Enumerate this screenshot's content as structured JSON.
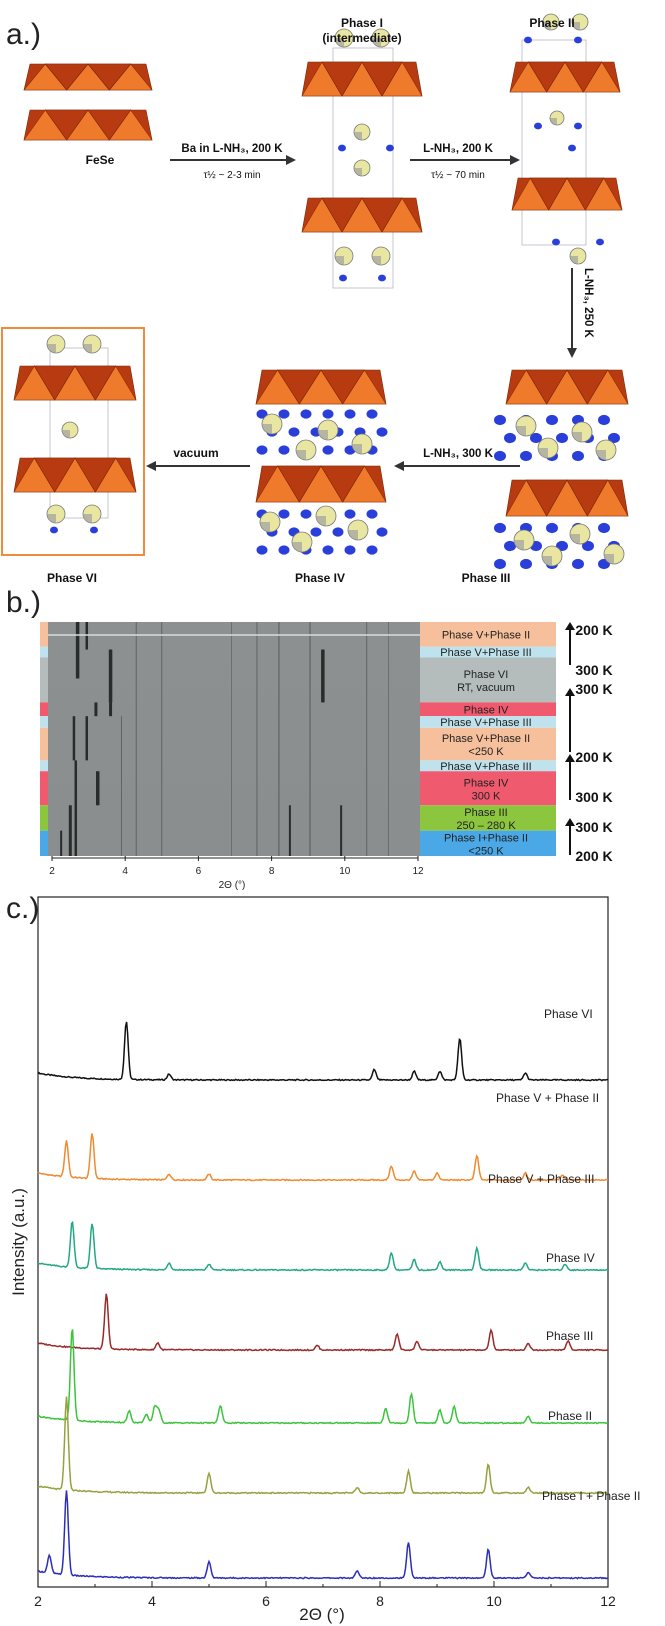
{
  "panel_a": {
    "label": "a.)",
    "fese": "FeSe",
    "phase_i": "Phase I",
    "phase_i_sub": "(intermediate)",
    "phase_ii": "Phase II",
    "phase_iii": "Phase III",
    "phase_iv": "Phase IV",
    "phase_vi": "Phase VI",
    "arrow1_top": "Ba in L-NH₃, 200 K",
    "arrow1_bottom": "τ½ ~ 2-3 min",
    "arrow2_top": "L-NH₃, 200 K",
    "arrow2_bottom": "τ½ ~ 70 min",
    "arrow3": "L-NH₃, 250 K",
    "arrow4": "L-NH₃, 300 K",
    "arrow5": "vacuum",
    "colors": {
      "octahedron_light": "#f07a2c",
      "octahedron_dark": "#b83a10",
      "ba_atom": "#e8e6a0",
      "n_atom": "#2a3fd9",
      "box": "#f08a3c"
    }
  },
  "panel_b": {
    "label": "b.)",
    "x_tick_labels": [
      "2",
      "4",
      "6",
      "8",
      "10",
      "12"
    ],
    "xlabel": "2Θ (°)",
    "bands": [
      {
        "line1": "Phase V+Phase II",
        "line2": "",
        "color": "#f6c09d"
      },
      {
        "line1": "Phase V+Phase III",
        "line2": "",
        "color": "#bfe3ee"
      },
      {
        "line1": "Phase VI",
        "line2": "RT, vacuum",
        "color": "#b4bcbc"
      },
      {
        "line1": "Phase IV",
        "line2": "",
        "color": "#f05a6e"
      },
      {
        "line1": "Phase V+Phase III",
        "line2": "",
        "color": "#bfe3ee"
      },
      {
        "line1": "Phase V+Phase II",
        "line2": "<250 K",
        "color": "#f6c09d"
      },
      {
        "line1": "Phase V+Phase III",
        "line2": "",
        "color": "#bfe3ee"
      },
      {
        "line1": "Phase IV",
        "line2": "300 K",
        "color": "#f05a6e"
      },
      {
        "line1": "Phase III",
        "line2": "250 – 280 K",
        "color": "#8cc63e"
      },
      {
        "line1": "Phase I+Phase II",
        "line2": "<250 K",
        "color": "#4aa8e6"
      }
    ],
    "temp_labels": [
      "200 K",
      "300 K",
      "300 K",
      "200 K",
      "300 K",
      "300 K",
      "200 K"
    ]
  },
  "chart_data": {
    "type": "line",
    "xlabel": "2Θ (°)",
    "ylabel": "Intensity (a.u.)",
    "xlim": [
      2,
      12
    ],
    "x_tick_labels": [
      "2",
      "4",
      "6",
      "8",
      "10",
      "12"
    ],
    "series": [
      {
        "name": "Phase VI",
        "color": "#111111",
        "offset": 6,
        "peaks": [
          [
            3.55,
            1.0
          ],
          [
            4.3,
            0.1
          ],
          [
            7.9,
            0.18
          ],
          [
            8.6,
            0.15
          ],
          [
            9.05,
            0.15
          ],
          [
            9.4,
            0.72
          ],
          [
            10.55,
            0.12
          ]
        ]
      },
      {
        "name": "Phase V + Phase II",
        "color": "#f08a30",
        "offset": 5,
        "peaks": [
          [
            2.5,
            0.62
          ],
          [
            2.95,
            0.78
          ],
          [
            4.3,
            0.1
          ],
          [
            5.0,
            0.1
          ],
          [
            8.2,
            0.24
          ],
          [
            8.6,
            0.15
          ],
          [
            9.0,
            0.12
          ],
          [
            9.7,
            0.42
          ],
          [
            10.55,
            0.12
          ],
          [
            11.2,
            0.08
          ]
        ]
      },
      {
        "name": "Phase V + Phase III",
        "color": "#22a884",
        "offset": 4,
        "peaks": [
          [
            2.6,
            0.8
          ],
          [
            2.95,
            0.78
          ],
          [
            4.3,
            0.12
          ],
          [
            5.0,
            0.1
          ],
          [
            8.2,
            0.3
          ],
          [
            8.6,
            0.18
          ],
          [
            9.05,
            0.14
          ],
          [
            9.7,
            0.38
          ],
          [
            10.55,
            0.12
          ],
          [
            11.25,
            0.1
          ]
        ]
      },
      {
        "name": "Phase IV",
        "color": "#9a2a2a",
        "offset": 3,
        "peaks": [
          [
            3.2,
            0.95
          ],
          [
            4.1,
            0.12
          ],
          [
            6.9,
            0.08
          ],
          [
            8.3,
            0.28
          ],
          [
            8.65,
            0.15
          ],
          [
            9.95,
            0.34
          ],
          [
            10.6,
            0.12
          ],
          [
            11.3,
            0.16
          ]
        ]
      },
      {
        "name": "Phase III",
        "color": "#3cc43c",
        "offset": 2,
        "peaks": [
          [
            2.6,
            1.6
          ],
          [
            3.6,
            0.2
          ],
          [
            3.9,
            0.15
          ],
          [
            4.05,
            0.28
          ],
          [
            4.12,
            0.22
          ],
          [
            5.2,
            0.3
          ],
          [
            8.1,
            0.26
          ],
          [
            8.55,
            0.5
          ],
          [
            9.05,
            0.22
          ],
          [
            9.3,
            0.28
          ],
          [
            10.6,
            0.12
          ]
        ]
      },
      {
        "name": "Phase II",
        "color": "#98a040",
        "offset": 1,
        "peaks": [
          [
            2.5,
            1.6
          ],
          [
            5.0,
            0.34
          ],
          [
            7.6,
            0.1
          ],
          [
            8.5,
            0.38
          ],
          [
            9.9,
            0.5
          ],
          [
            10.6,
            0.1
          ]
        ]
      },
      {
        "name": "Phase I + Phase II",
        "color": "#2b2fb8",
        "offset": 0,
        "peaks": [
          [
            2.2,
            0.3
          ],
          [
            2.5,
            1.45
          ],
          [
            5.0,
            0.28
          ],
          [
            7.6,
            0.12
          ],
          [
            8.5,
            0.62
          ],
          [
            9.9,
            0.5
          ],
          [
            10.6,
            0.1
          ]
        ]
      }
    ]
  },
  "panel_c": {
    "label": "c.)"
  }
}
